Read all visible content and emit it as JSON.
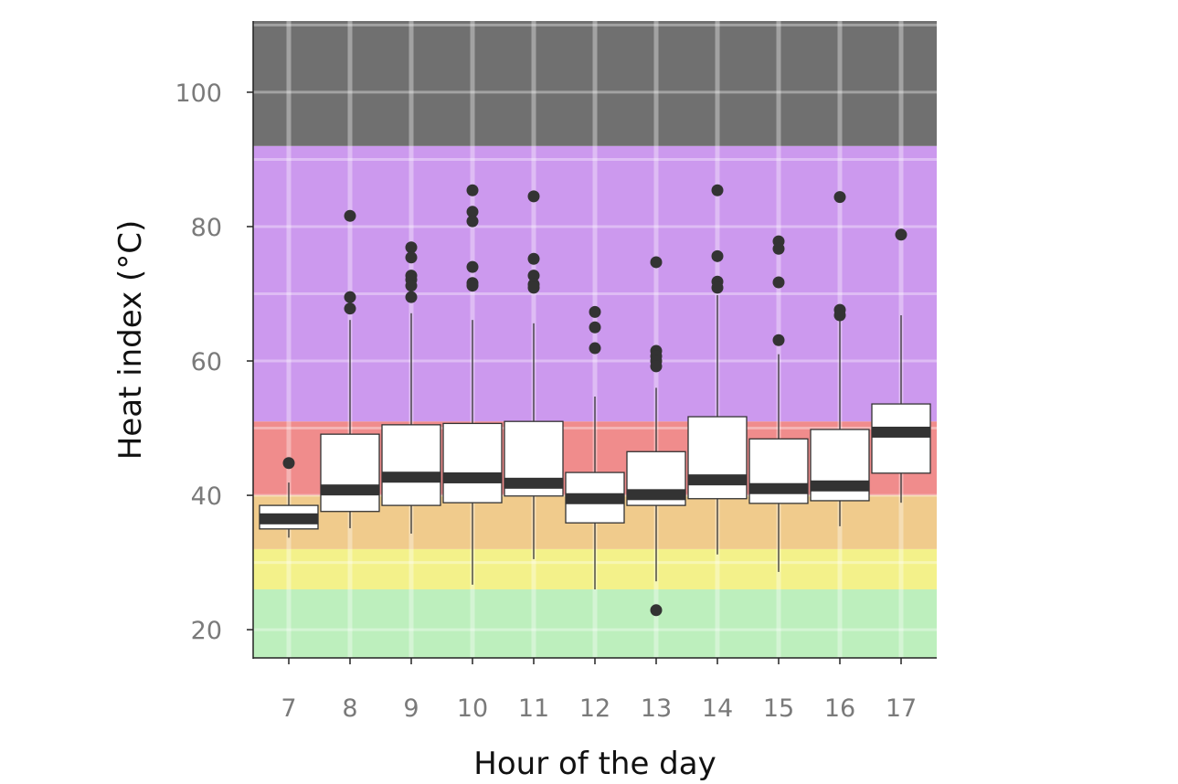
{
  "chart_data": {
    "type": "box",
    "title": "",
    "xlabel": "Hour of the day",
    "ylabel": "Heat index (°C)",
    "ylim": [
      15.8,
      110.6
    ],
    "yticks": [
      20,
      40,
      60,
      80,
      100
    ],
    "categories": [
      "7",
      "8",
      "9",
      "10",
      "11",
      "12",
      "13",
      "14",
      "15",
      "16",
      "17"
    ],
    "bands": [
      {
        "from": 15.8,
        "to": 26,
        "color": "#bdefbd"
      },
      {
        "from": 26,
        "to": 32,
        "color": "#f3f18a"
      },
      {
        "from": 32,
        "to": 40,
        "color": "#f0cb8c"
      },
      {
        "from": 40,
        "to": 51,
        "color": "#f08c8c"
      },
      {
        "from": 51,
        "to": 92,
        "color": "#cc99ee"
      },
      {
        "from": 92,
        "to": 110.6,
        "color": "#707070"
      }
    ],
    "boxes": [
      {
        "low": 33.7,
        "q1": 35.0,
        "median": 36.5,
        "q3": 38.5,
        "high": 41.9,
        "outliers": [
          44.8
        ]
      },
      {
        "low": 35.1,
        "q1": 37.6,
        "median": 40.8,
        "q3": 49.1,
        "high": 66.1,
        "outliers": [
          81.6,
          69.5,
          67.8
        ]
      },
      {
        "low": 34.3,
        "q1": 38.5,
        "median": 42.7,
        "q3": 50.5,
        "high": 67.1,
        "outliers": [
          76.9,
          75.4,
          72.7,
          72.1,
          71.2,
          69.5
        ]
      },
      {
        "low": 26.7,
        "q1": 38.9,
        "median": 42.6,
        "q3": 50.7,
        "high": 66.1,
        "outliers": [
          85.4,
          82.2,
          80.8,
          74.0,
          71.6,
          71.2
        ]
      },
      {
        "low": 30.5,
        "q1": 39.9,
        "median": 41.8,
        "q3": 51.0,
        "high": 65.6,
        "outliers": [
          84.5,
          75.2,
          72.7,
          71.4,
          70.9
        ]
      },
      {
        "low": 26.0,
        "q1": 35.9,
        "median": 39.5,
        "q3": 43.4,
        "high": 54.7,
        "outliers": [
          67.3,
          65.0,
          61.9
        ]
      },
      {
        "low": 27.2,
        "q1": 38.5,
        "median": 40.1,
        "q3": 46.5,
        "high": 56.0,
        "outliers": [
          74.7,
          61.5,
          60.7,
          60.0,
          59.2,
          22.9
        ]
      },
      {
        "low": 31.2,
        "q1": 39.5,
        "median": 42.3,
        "q3": 51.7,
        "high": 69.8,
        "outliers": [
          85.4,
          75.6,
          71.8,
          70.9
        ]
      },
      {
        "low": 28.6,
        "q1": 38.8,
        "median": 41.0,
        "q3": 48.4,
        "high": 61.0,
        "outliers": [
          77.8,
          76.7,
          71.7,
          63.1
        ]
      },
      {
        "low": 35.4,
        "q1": 39.2,
        "median": 41.4,
        "q3": 49.8,
        "high": 67.9,
        "outliers": [
          84.4,
          67.6,
          66.8
        ]
      },
      {
        "low": 38.9,
        "q1": 43.3,
        "median": 49.4,
        "q3": 53.6,
        "high": 66.8,
        "outliers": [
          78.8
        ]
      }
    ]
  }
}
